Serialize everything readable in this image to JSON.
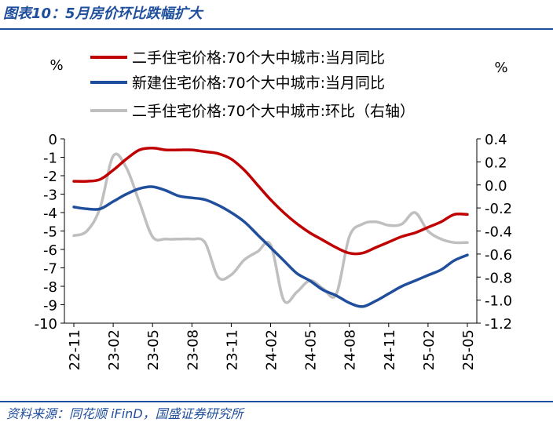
{
  "figure": {
    "title": "图表10：5月房价环比跌幅扩大",
    "source": "资料来源：同花顺 iFinD，国盛证券研究所"
  },
  "chart_data": {
    "type": "line",
    "left_axis_unit": "%",
    "right_axis_unit": "%",
    "left_ylim": [
      -10,
      0
    ],
    "left_yticks": [
      "0",
      "-1",
      "-2",
      "-3",
      "-4",
      "-5",
      "-6",
      "-7",
      "-8",
      "-9",
      "-10"
    ],
    "right_ylim": [
      -1.2,
      0.4
    ],
    "right_yticks": [
      "0.4",
      "0.2",
      "0.0",
      "-0.2",
      "-0.4",
      "-0.6",
      "-0.8",
      "-1.0",
      "-1.2"
    ],
    "x": [
      "22-11",
      "22-12",
      "23-01",
      "23-02",
      "23-03",
      "23-04",
      "23-05",
      "23-06",
      "23-07",
      "23-08",
      "23-09",
      "23-10",
      "23-11",
      "23-12",
      "24-01",
      "24-02",
      "24-03",
      "24-04",
      "24-05",
      "24-06",
      "24-07",
      "24-08",
      "24-09",
      "24-10",
      "24-11",
      "24-12",
      "25-01",
      "25-02",
      "25-03",
      "25-04",
      "25-05"
    ],
    "xtick_labels": [
      "22-11",
      "23-02",
      "23-05",
      "23-08",
      "23-11",
      "24-02",
      "24-05",
      "24-08",
      "24-11",
      "25-02",
      "25-05"
    ],
    "series": [
      {
        "name": "二手住宅价格:70个大中城市:当月同比",
        "axis": "left",
        "color": "#c00000",
        "values": [
          -2.3,
          -2.3,
          -2.2,
          -1.7,
          -1.1,
          -0.6,
          -0.5,
          -0.6,
          -0.6,
          -0.6,
          -0.7,
          -0.8,
          -1.1,
          -1.7,
          -2.5,
          -3.3,
          -4.0,
          -4.6,
          -5.1,
          -5.5,
          -5.9,
          -6.2,
          -6.2,
          -5.9,
          -5.6,
          -5.3,
          -5.1,
          -4.8,
          -4.5,
          -4.1,
          -4.1
        ]
      },
      {
        "name": "新建住宅价格:70个大中城市:当月同比",
        "axis": "left",
        "color": "#1f4e9c",
        "values": [
          -3.7,
          -3.8,
          -3.8,
          -3.4,
          -3.0,
          -2.7,
          -2.6,
          -2.8,
          -3.1,
          -3.2,
          -3.3,
          -3.6,
          -4.0,
          -4.5,
          -5.2,
          -5.9,
          -6.6,
          -7.3,
          -7.7,
          -8.2,
          -8.5,
          -8.9,
          -9.1,
          -8.8,
          -8.4,
          -8.0,
          -7.7,
          -7.4,
          -7.1,
          -6.6,
          -6.3
        ]
      },
      {
        "name": "二手住宅价格:70个大中城市:环比（右轴）",
        "axis": "right",
        "color": "#bfbfbf",
        "values": [
          -0.44,
          -0.4,
          -0.2,
          0.25,
          0.15,
          -0.15,
          -0.45,
          -0.47,
          -0.47,
          -0.47,
          -0.5,
          -0.8,
          -0.78,
          -0.65,
          -0.58,
          -0.52,
          -1.0,
          -0.93,
          -0.83,
          -0.9,
          -0.95,
          -0.45,
          -0.34,
          -0.32,
          -0.35,
          -0.34,
          -0.24,
          -0.4,
          -0.47,
          -0.5,
          -0.5
        ]
      }
    ]
  }
}
